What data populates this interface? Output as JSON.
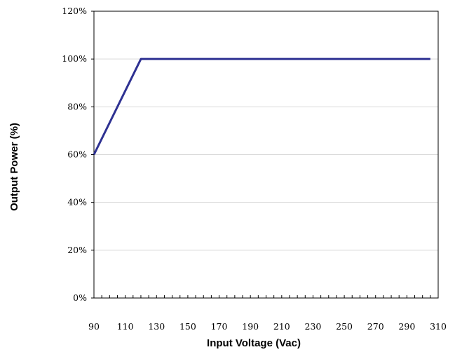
{
  "chart_data": {
    "type": "line",
    "title": "",
    "xlabel": "Input Voltage (Vac)",
    "ylabel": "Output Power (%)",
    "xlim": [
      90,
      310
    ],
    "ylim": [
      0,
      120
    ],
    "x_ticks": [
      90,
      110,
      130,
      150,
      170,
      190,
      210,
      230,
      250,
      270,
      290,
      310
    ],
    "x_tick_labels": [
      "90",
      "110",
      "130",
      "150",
      "170",
      "190",
      "210",
      "230",
      "250",
      "270",
      "290",
      "310"
    ],
    "y_ticks": [
      0,
      20,
      40,
      60,
      80,
      100,
      120
    ],
    "y_tick_labels": [
      "0%",
      "20%",
      "40%",
      "60%",
      "80%",
      "100%",
      "120%"
    ],
    "grid": "horizontal",
    "legend": "none",
    "series": [
      {
        "color": "#2e3192",
        "points": [
          {
            "x": 90,
            "y": 60
          },
          {
            "x": 120,
            "y": 100
          },
          {
            "x": 305,
            "y": 100
          }
        ]
      }
    ]
  },
  "colors": {
    "line": "#2e3192",
    "grid": "#d9d9d9",
    "axis": "#000000"
  }
}
